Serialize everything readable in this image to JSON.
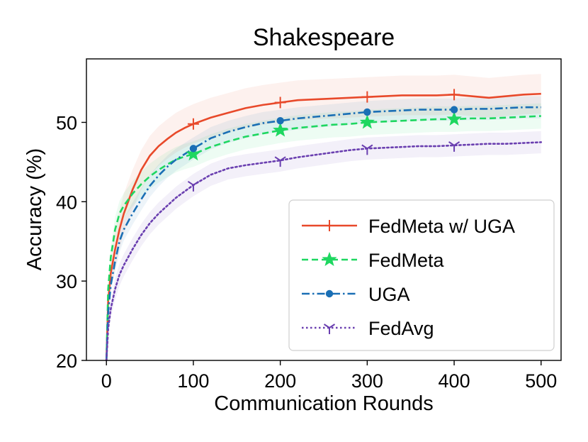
{
  "chart_data": {
    "type": "line",
    "title": "Shakespeare",
    "xlabel": "Communication Rounds",
    "ylabel": "Accuracy (%)",
    "xlim": [
      -23,
      523
    ],
    "ylim": [
      20,
      58
    ],
    "xticks": [
      0,
      100,
      200,
      300,
      400,
      500
    ],
    "yticks": [
      20,
      30,
      40,
      50
    ],
    "grid": false,
    "legend_position": "lower-right",
    "series": [
      {
        "name": "FedMeta w/ UGA",
        "color": "#e8492a",
        "linestyle": "solid",
        "marker": "plus",
        "band": 2.5,
        "marker_x": [
          100,
          200,
          300,
          400
        ],
        "x": [
          0,
          2,
          5,
          10,
          15,
          20,
          30,
          40,
          50,
          60,
          70,
          80,
          90,
          100,
          120,
          140,
          160,
          180,
          200,
          220,
          240,
          260,
          280,
          300,
          320,
          340,
          360,
          380,
          400,
          420,
          440,
          460,
          480,
          500
        ],
        "y": [
          20.0,
          27.5,
          31.0,
          34.0,
          36.5,
          38.5,
          41.5,
          44.0,
          45.8,
          47.0,
          47.9,
          48.7,
          49.3,
          49.8,
          50.6,
          51.2,
          51.8,
          52.2,
          52.5,
          52.8,
          52.9,
          53.0,
          53.1,
          53.2,
          53.3,
          53.4,
          53.4,
          53.4,
          53.5,
          53.3,
          53.1,
          53.3,
          53.5,
          53.6
        ]
      },
      {
        "name": "FedMeta",
        "color": "#1ed760",
        "linestyle": "dashed",
        "marker": "star",
        "band": 1.6,
        "marker_x": [
          100,
          200,
          300,
          400
        ],
        "x": [
          0,
          2,
          5,
          10,
          15,
          20,
          30,
          40,
          50,
          60,
          70,
          80,
          90,
          100,
          120,
          140,
          160,
          180,
          200,
          220,
          240,
          260,
          280,
          300,
          320,
          340,
          360,
          380,
          400,
          420,
          440,
          460,
          480,
          500
        ],
        "y": [
          20.0,
          29.0,
          33.0,
          36.5,
          38.5,
          39.5,
          41.0,
          42.2,
          43.2,
          44.0,
          44.7,
          45.3,
          45.7,
          46.0,
          46.9,
          47.6,
          48.2,
          48.6,
          49.0,
          49.3,
          49.5,
          49.7,
          49.8,
          50.0,
          50.1,
          50.2,
          50.3,
          50.4,
          50.4,
          50.5,
          50.5,
          50.6,
          50.7,
          50.8
        ]
      },
      {
        "name": "UGA",
        "color": "#1a6fb5",
        "linestyle": "dashdot",
        "marker": "circle",
        "band": 1.4,
        "marker_x": [
          100,
          200,
          300,
          400
        ],
        "x": [
          0,
          2,
          5,
          10,
          15,
          20,
          30,
          40,
          50,
          60,
          70,
          80,
          90,
          100,
          120,
          140,
          160,
          180,
          200,
          220,
          240,
          260,
          280,
          300,
          320,
          340,
          360,
          380,
          400,
          420,
          440,
          460,
          480,
          500
        ],
        "y": [
          20.0,
          26.0,
          29.5,
          32.5,
          35.0,
          36.5,
          38.5,
          40.3,
          42.0,
          43.3,
          44.4,
          45.3,
          46.0,
          46.7,
          48.0,
          48.8,
          49.4,
          49.9,
          50.2,
          50.5,
          50.7,
          50.9,
          51.1,
          51.3,
          51.4,
          51.5,
          51.6,
          51.6,
          51.6,
          51.7,
          51.7,
          51.8,
          51.9,
          51.9
        ]
      },
      {
        "name": "FedAvg",
        "color": "#6a3fb0",
        "linestyle": "dotted",
        "marker": "tri_down",
        "band": 1.4,
        "marker_x": [
          100,
          200,
          300,
          400
        ],
        "x": [
          0,
          2,
          5,
          10,
          15,
          20,
          30,
          40,
          50,
          60,
          70,
          80,
          90,
          100,
          120,
          140,
          160,
          180,
          200,
          220,
          240,
          260,
          280,
          300,
          320,
          340,
          360,
          380,
          400,
          420,
          440,
          460,
          480,
          500
        ],
        "y": [
          20.0,
          24.0,
          26.5,
          29.0,
          30.8,
          32.0,
          34.0,
          35.8,
          37.3,
          38.5,
          39.5,
          40.5,
          41.3,
          42.1,
          43.4,
          44.2,
          44.6,
          44.9,
          45.2,
          45.6,
          45.9,
          46.2,
          46.5,
          46.7,
          46.8,
          46.9,
          47.0,
          47.0,
          47.1,
          47.2,
          47.3,
          47.3,
          47.4,
          47.5
        ]
      }
    ]
  }
}
